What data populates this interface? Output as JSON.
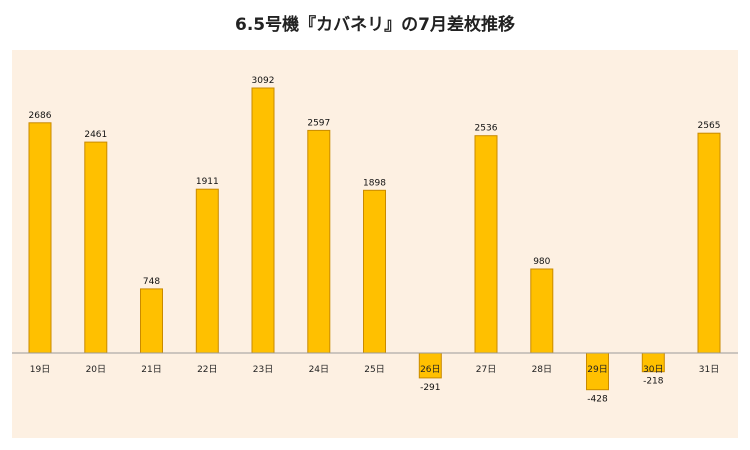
{
  "chart_data": {
    "type": "bar",
    "title": "6.5号機『カバネリ』の7月差枚推移",
    "categories": [
      "19日",
      "20日",
      "21日",
      "22日",
      "23日",
      "24日",
      "25日",
      "26日",
      "27日",
      "28日",
      "29日",
      "30日",
      "31日"
    ],
    "values": [
      2686,
      2461,
      748,
      1911,
      3092,
      2597,
      1898,
      -291,
      2536,
      980,
      -428,
      -218,
      2565
    ],
    "xlabel": "",
    "ylabel": "",
    "ylim": [
      -1000,
      3300
    ],
    "grid": false,
    "legend": "none",
    "colors": {
      "bar_fill": "#ffc000",
      "bar_stroke": "#c98a00",
      "axis": "#9a9a9a",
      "plot_bg": "#fdf0e2"
    }
  }
}
